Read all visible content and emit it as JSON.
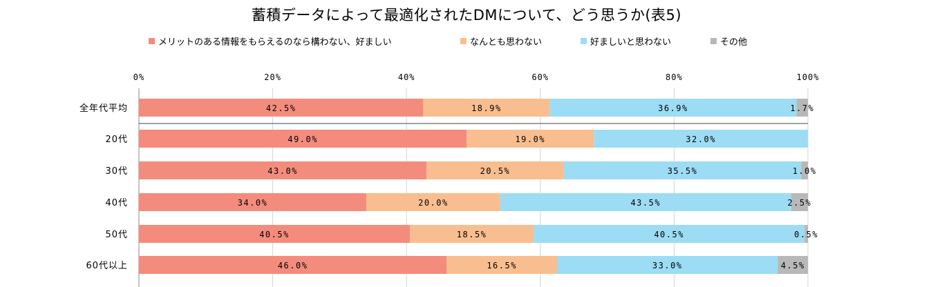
{
  "chart_data": {
    "type": "bar",
    "orientation": "horizontal",
    "stacked": true,
    "title": "蓄積データによって最適化されたDMについて、どう思うか(表5)",
    "categories": [
      "全年代平均",
      "20代",
      "30代",
      "40代",
      "50代",
      "60代以上"
    ],
    "xlim": [
      0,
      100
    ],
    "x_ticks": [
      "0%",
      "20%",
      "40%",
      "60%",
      "80%",
      "100%"
    ],
    "grid": true,
    "legend_position": "top",
    "series": [
      {
        "name": "メリットのある情報をもらえるのなら構わない、好ましい",
        "color": "#f48c7e",
        "values": [
          42.5,
          49.0,
          43.0,
          34.0,
          40.5,
          46.0
        ],
        "labels": [
          "42.5%",
          "49.0%",
          "43.0%",
          "34.0%",
          "40.5%",
          "46.0%"
        ]
      },
      {
        "name": "なんとも思わない",
        "color": "#f9be8f",
        "values": [
          18.9,
          19.0,
          20.5,
          20.0,
          18.5,
          16.5
        ],
        "labels": [
          "18.9%",
          "19.0%",
          "20.5%",
          "20.0%",
          "18.5%",
          "16.5%"
        ]
      },
      {
        "name": "好ましいと思わない",
        "color": "#9ddcf5",
        "values": [
          36.9,
          32.0,
          35.5,
          43.5,
          40.5,
          33.0
        ],
        "labels": [
          "36.9%",
          "32.0%",
          "35.5%",
          "43.5%",
          "40.5%",
          "33.0%"
        ]
      },
      {
        "name": "その他",
        "color": "#b8b8b8",
        "values": [
          1.7,
          0.0,
          1.0,
          2.5,
          0.5,
          4.5
        ],
        "labels": [
          "1.7%",
          "",
          "1.0%",
          "2.5%",
          "0.5%",
          "4.5%"
        ]
      }
    ]
  }
}
